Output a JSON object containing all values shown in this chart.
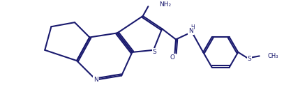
{
  "background_color": "#ffffff",
  "line_color": "#1a1a6e",
  "line_width": 1.5,
  "figsize": [
    4.4,
    1.55
  ],
  "dpi": 100,
  "xlim": [
    0,
    11
  ],
  "ylim": [
    -1.0,
    4.0
  ]
}
